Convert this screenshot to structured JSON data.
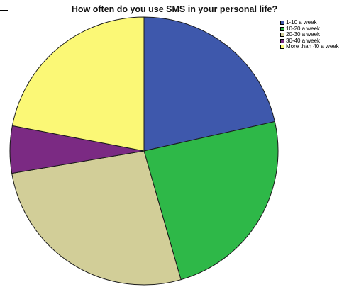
{
  "chart_data": {
    "type": "pie",
    "title": "How often do you use SMS in your personal life?",
    "categories": [
      "1-10 a week",
      "10-20 a week",
      "20-30 a week",
      "30-40 a week",
      "More than 40 a week"
    ],
    "values": [
      21.5,
      24.1,
      26.8,
      5.7,
      22.0
    ],
    "colors": [
      "#3e58ac",
      "#2eb848",
      "#d2ce98",
      "#7b2a83",
      "#fbf876"
    ],
    "start_angle_deg": 90,
    "direction": "clockwise",
    "legend_position": "top-right",
    "grid": false
  }
}
